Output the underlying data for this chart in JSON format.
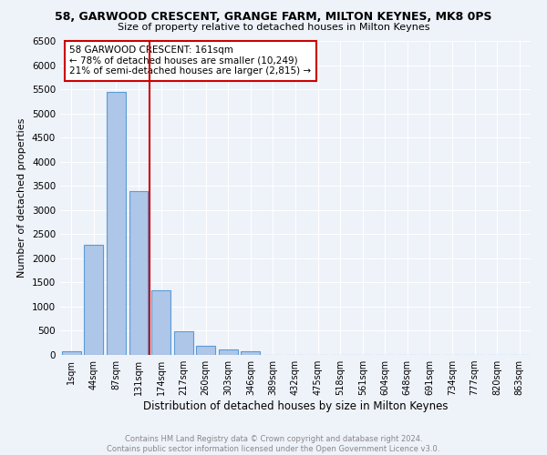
{
  "title": "58, GARWOOD CRESCENT, GRANGE FARM, MILTON KEYNES, MK8 0PS",
  "subtitle": "Size of property relative to detached houses in Milton Keynes",
  "xlabel": "Distribution of detached houses by size in Milton Keynes",
  "ylabel": "Number of detached properties",
  "annotation_line1": "58 GARWOOD CRESCENT: 161sqm",
  "annotation_line2": "← 78% of detached houses are smaller (10,249)",
  "annotation_line3": "21% of semi-detached houses are larger (2,815) →",
  "footer1": "Contains HM Land Registry data © Crown copyright and database right 2024.",
  "footer2": "Contains public sector information licensed under the Open Government Licence v3.0.",
  "bar_labels": [
    "1sqm",
    "44sqm",
    "87sqm",
    "131sqm",
    "174sqm",
    "217sqm",
    "260sqm",
    "303sqm",
    "346sqm",
    "389sqm",
    "432sqm",
    "475sqm",
    "518sqm",
    "561sqm",
    "604sqm",
    "648sqm",
    "691sqm",
    "734sqm",
    "777sqm",
    "820sqm",
    "863sqm"
  ],
  "bar_values": [
    70,
    2280,
    5450,
    3400,
    1340,
    490,
    195,
    105,
    75,
    0,
    0,
    0,
    0,
    0,
    0,
    0,
    0,
    0,
    0,
    0,
    0
  ],
  "bar_color": "#aec6e8",
  "bar_edge_color": "#5b9bd5",
  "vline_x": 3.5,
  "vline_color": "#cc0000",
  "ylim": [
    0,
    6500
  ],
  "yticks": [
    0,
    500,
    1000,
    1500,
    2000,
    2500,
    3000,
    3500,
    4000,
    4500,
    5000,
    5500,
    6000,
    6500
  ],
  "annotation_box_color": "#cc0000",
  "bg_color": "#eef2f9",
  "grid_color": "#ffffff"
}
